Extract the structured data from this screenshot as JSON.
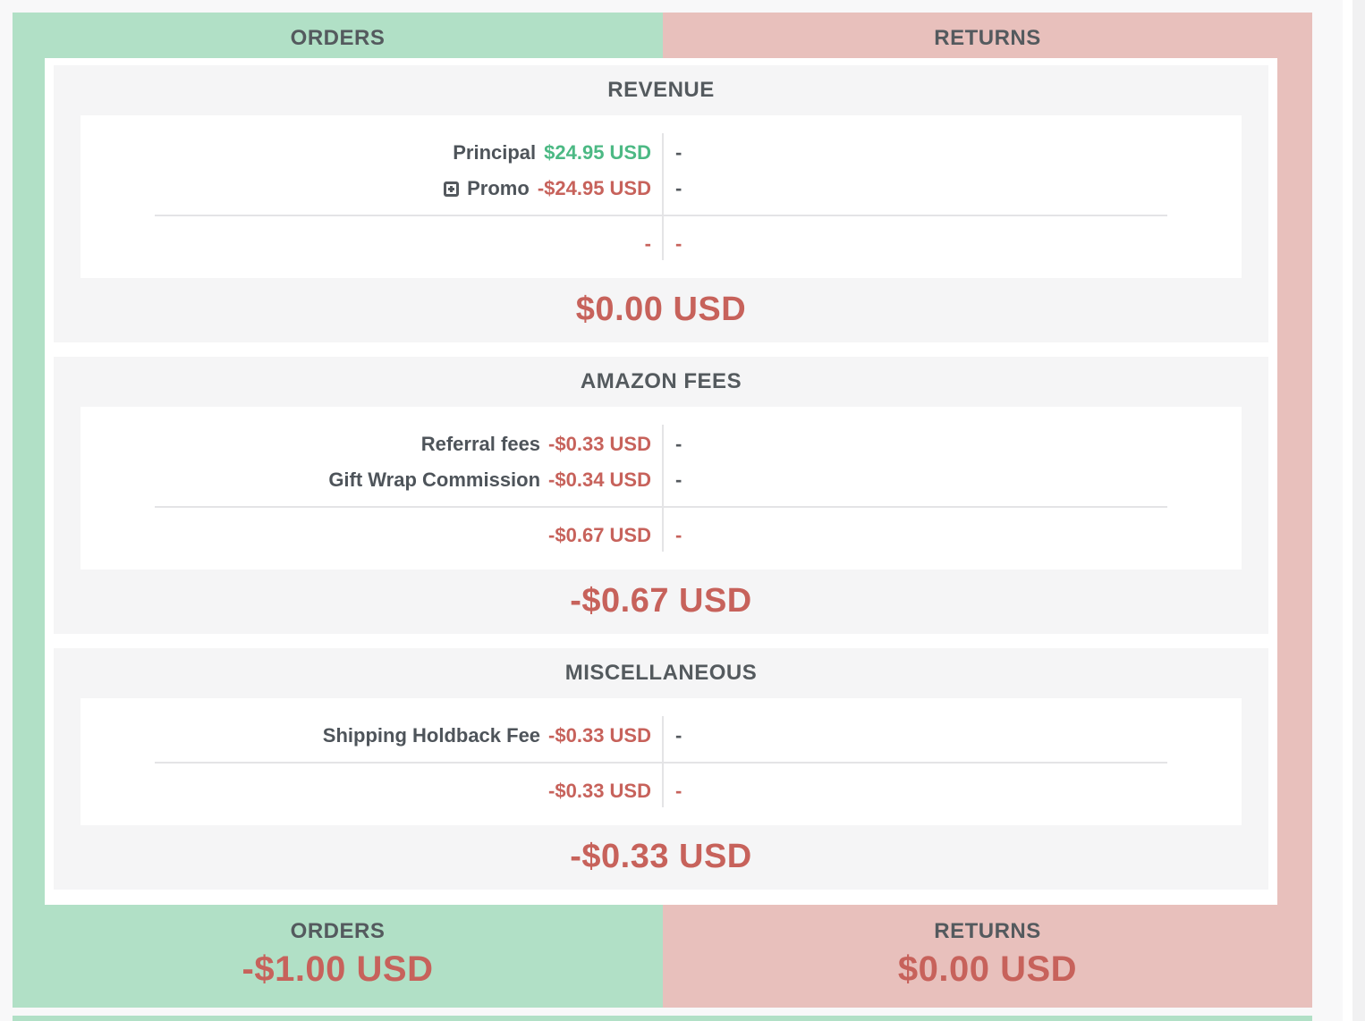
{
  "colors": {
    "orders_bg": "#b1e0c6",
    "returns_bg": "#e8c0bc",
    "negative_red": "#c7625b",
    "positive_green": "#4cb984",
    "text_dark": "#54595e"
  },
  "header": {
    "orders_label": "ORDERS",
    "returns_label": "RETURNS"
  },
  "sections": [
    {
      "title": "REVENUE",
      "rows": [
        {
          "label": "Principal",
          "orders_value": "$24.95 USD",
          "returns_value": "-"
        },
        {
          "label": "Promo",
          "orders_value": "-$24.95 USD",
          "returns_value": "-"
        }
      ],
      "subtotal": {
        "orders": "-",
        "returns": "-"
      },
      "total": "$0.00 USD"
    },
    {
      "title": "AMAZON FEES",
      "rows": [
        {
          "label": "Referral fees",
          "orders_value": "-$0.33 USD",
          "returns_value": "-"
        },
        {
          "label": "Gift Wrap Commission",
          "orders_value": "-$0.34 USD",
          "returns_value": "-"
        }
      ],
      "subtotal": {
        "orders": "-$0.67 USD",
        "returns": "-"
      },
      "total": "-$0.67 USD"
    },
    {
      "title": "MISCELLANEOUS",
      "rows": [
        {
          "label": "Shipping Holdback Fee",
          "orders_value": "-$0.33 USD",
          "returns_value": "-"
        }
      ],
      "subtotal": {
        "orders": "-$0.33 USD",
        "returns": "-"
      },
      "total": "-$0.33 USD"
    }
  ],
  "footer": {
    "orders_label": "ORDERS",
    "orders_total": "-$1.00 USD",
    "returns_label": "RETURNS",
    "returns_total": "$0.00 USD"
  }
}
